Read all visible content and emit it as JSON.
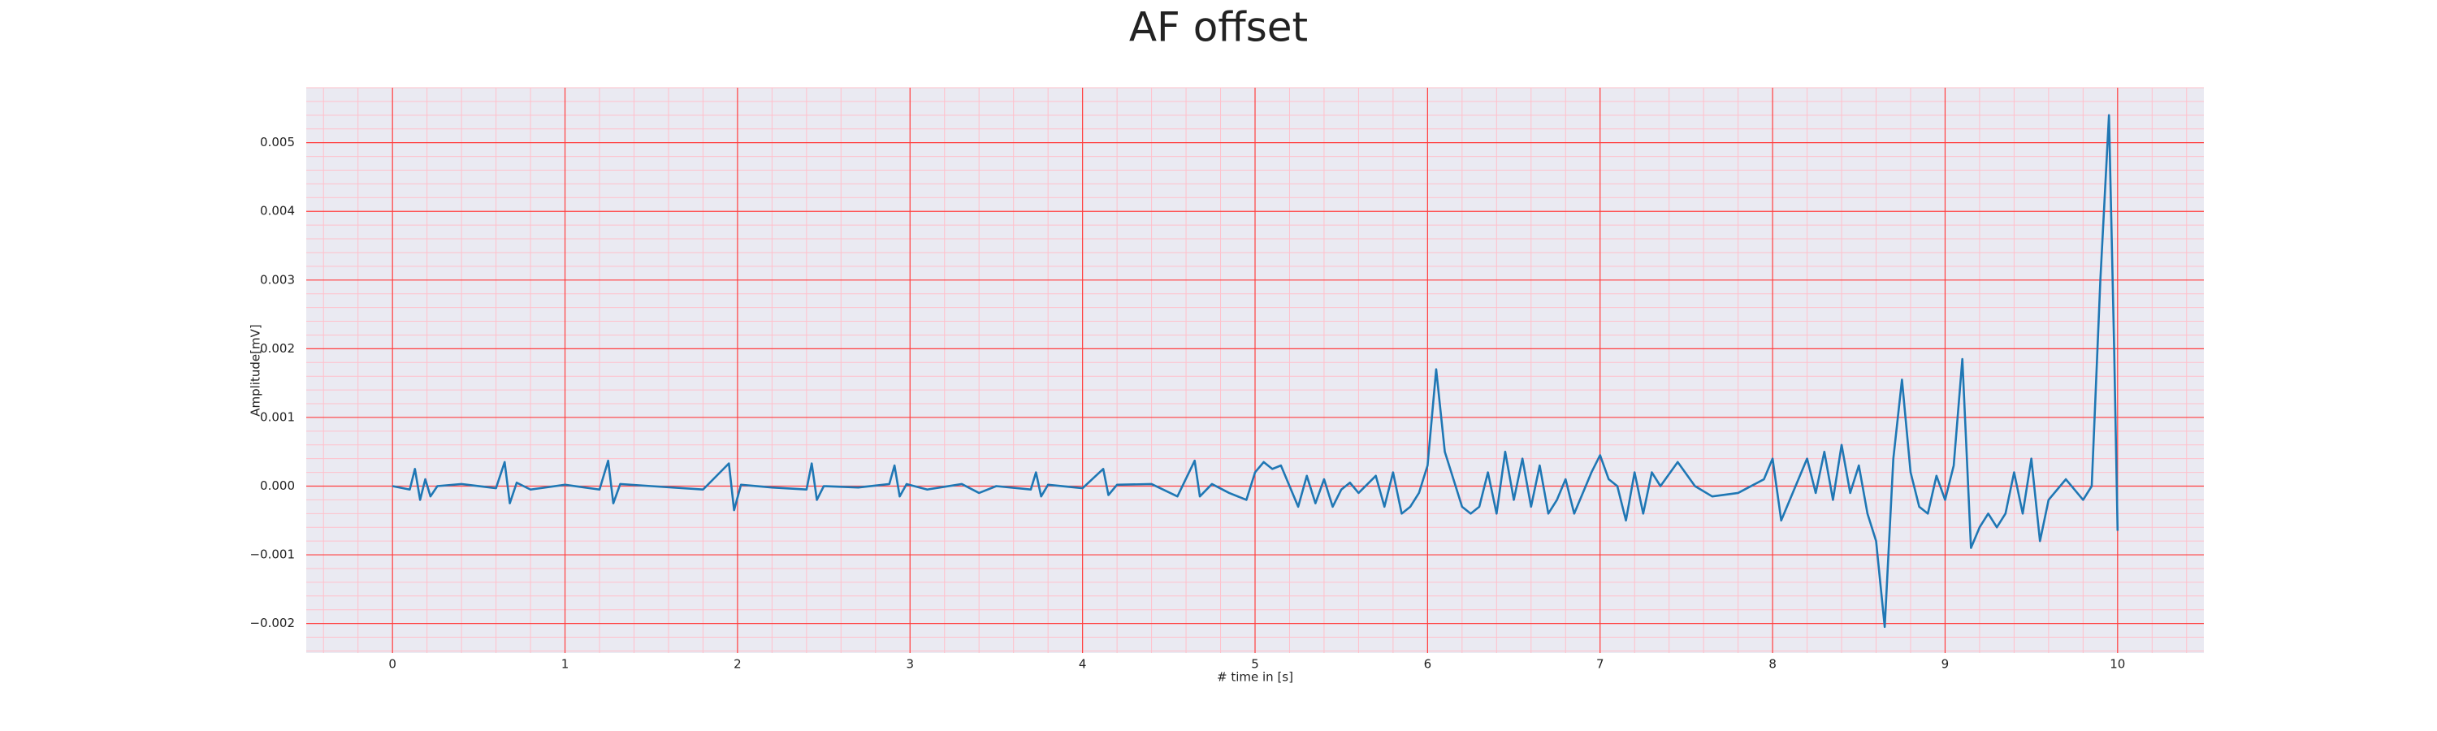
{
  "chart_data": {
    "type": "line",
    "title": "AF offset",
    "xlabel": "# time in [s]",
    "ylabel": "Amplitude[mV]",
    "xlim": [
      -0.5,
      10.5
    ],
    "ylim": [
      -0.00243,
      0.0058
    ],
    "xticks": [
      0,
      1,
      2,
      3,
      4,
      5,
      6,
      7,
      8,
      9,
      10
    ],
    "yticks": [
      {
        "value": -0.002,
        "label": "−0.002"
      },
      {
        "value": -0.001,
        "label": "−0.001"
      },
      {
        "value": 0,
        "label": "0.000"
      },
      0.001,
      0.002,
      0.003,
      0.004,
      0.005
    ],
    "grid": true,
    "minor_grid": true,
    "series": [
      {
        "color": "#1f77b4",
        "x": [
          0.0,
          0.1,
          0.13,
          0.16,
          0.19,
          0.22,
          0.26,
          0.4,
          0.6,
          0.65,
          0.68,
          0.72,
          0.8,
          1.0,
          1.2,
          1.25,
          1.28,
          1.32,
          1.5,
          1.8,
          1.95,
          1.98,
          2.02,
          2.2,
          2.4,
          2.43,
          2.46,
          2.5,
          2.7,
          2.88,
          2.91,
          2.94,
          2.98,
          3.1,
          3.3,
          3.4,
          3.5,
          3.7,
          3.73,
          3.76,
          3.8,
          4.0,
          4.12,
          4.15,
          4.2,
          4.4,
          4.55,
          4.65,
          4.68,
          4.75,
          4.85,
          4.95,
          5.0,
          5.05,
          5.1,
          5.15,
          5.2,
          5.25,
          5.3,
          5.35,
          5.4,
          5.45,
          5.5,
          5.55,
          5.6,
          5.7,
          5.75,
          5.8,
          5.85,
          5.9,
          5.95,
          6.0,
          6.05,
          6.1,
          6.15,
          6.2,
          6.25,
          6.3,
          6.35,
          6.4,
          6.45,
          6.5,
          6.55,
          6.6,
          6.65,
          6.7,
          6.75,
          6.8,
          6.85,
          6.95,
          7.0,
          7.05,
          7.1,
          7.15,
          7.2,
          7.25,
          7.3,
          7.35,
          7.45,
          7.55,
          7.65,
          7.8,
          7.95,
          8.0,
          8.05,
          8.1,
          8.2,
          8.25,
          8.3,
          8.35,
          8.4,
          8.45,
          8.5,
          8.55,
          8.6,
          8.65,
          8.7,
          8.75,
          8.8,
          8.85,
          8.9,
          8.95,
          9.0,
          9.05,
          9.1,
          9.15,
          9.2,
          9.25,
          9.3,
          9.35,
          9.4,
          9.45,
          9.5,
          9.55,
          9.6,
          9.7,
          9.8,
          9.85,
          9.9,
          9.95,
          9.98,
          10.0
        ],
        "values": [
          0,
          -5e-05,
          0.00025,
          -0.0002,
          0.0001,
          -0.00015,
          0,
          3e-05,
          -3e-05,
          0.00035,
          -0.00025,
          5e-05,
          -5e-05,
          2e-05,
          -5e-05,
          0.00037,
          -0.00025,
          3e-05,
          0,
          -5e-05,
          0.00033,
          -0.00035,
          2e-05,
          -2e-05,
          -5e-05,
          0.00033,
          -0.0002,
          0,
          -2e-05,
          3e-05,
          0.0003,
          -0.00015,
          3e-05,
          -5e-05,
          3e-05,
          -0.0001,
          0,
          -5e-05,
          0.0002,
          -0.00015,
          2e-05,
          -3e-05,
          0.00025,
          -0.00013,
          2e-05,
          3e-05,
          -0.00015,
          0.00037,
          -0.00015,
          3e-05,
          -0.0001,
          -0.0002,
          0.0002,
          0.00035,
          0.00025,
          0.0003,
          0,
          -0.0003,
          0.00015,
          -0.00025,
          0.0001,
          -0.0003,
          -5e-05,
          5e-05,
          -0.0001,
          0.00015,
          -0.0003,
          0.0002,
          -0.0004,
          -0.0003,
          -0.0001,
          0.0003,
          0.0017,
          0.0005,
          0.0001,
          -0.0003,
          -0.0004,
          -0.0003,
          0.0002,
          -0.0004,
          0.0005,
          -0.0002,
          0.0004,
          -0.0003,
          0.0003,
          -0.0004,
          -0.0002,
          0.0001,
          -0.0004,
          0.0002,
          0.00045,
          0.0001,
          0,
          -0.0005,
          0.0002,
          -0.0004,
          0.0002,
          0,
          0.00035,
          0,
          -0.00015,
          -0.0001,
          0.0001,
          0.0004,
          -0.0005,
          -0.0002,
          0.0004,
          -0.0001,
          0.0005,
          -0.0002,
          0.0006,
          -0.0001,
          0.0003,
          -0.0004,
          -0.0008,
          -0.00205,
          0.0004,
          0.00155,
          0.0002,
          -0.0003,
          -0.0004,
          0.00015,
          -0.0002,
          0.0003,
          0.00185,
          -0.0009,
          -0.0006,
          -0.0004,
          -0.0006,
          -0.0004,
          0.0002,
          -0.0004,
          0.0004,
          -0.0008,
          -0.0002,
          0.0001,
          -0.0002,
          0,
          0.003,
          0.0054,
          0.002,
          -0.00065
        ]
      }
    ]
  }
}
